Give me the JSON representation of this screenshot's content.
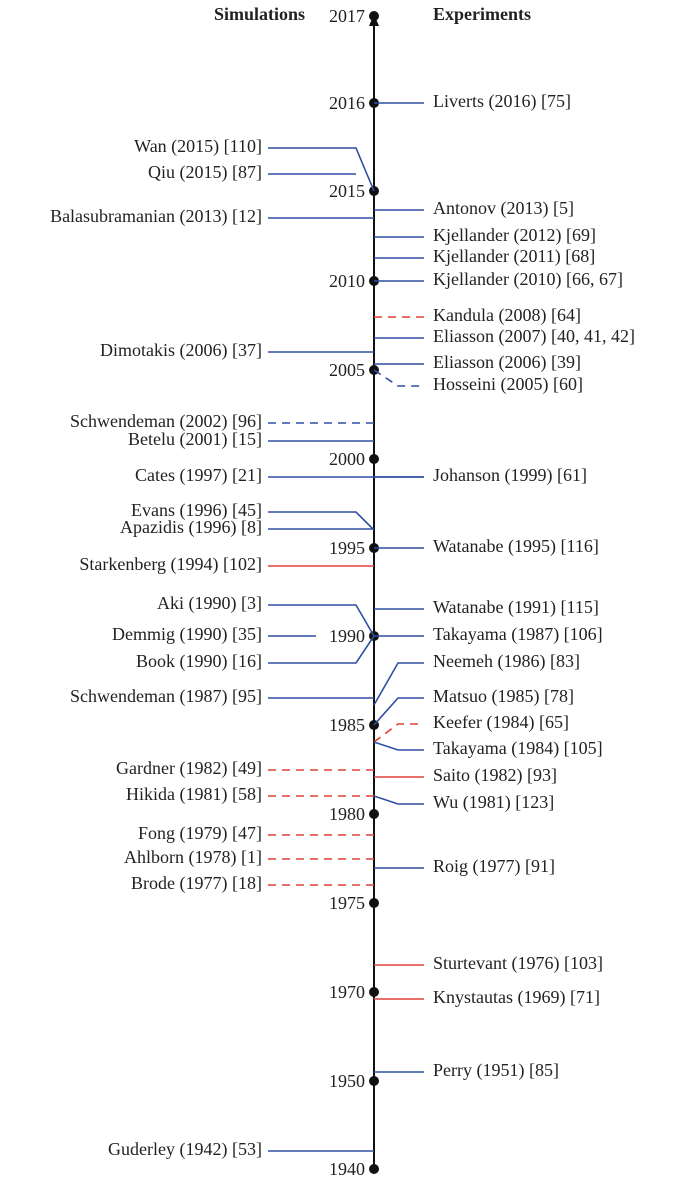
{
  "headers": {
    "left": "Simulations",
    "right": "Experiments"
  },
  "years": [
    "2017",
    "2016",
    "2015",
    "2010",
    "2005",
    "2000",
    "1995",
    "1990",
    "1985",
    "1980",
    "1975",
    "1970",
    "1950",
    "1940"
  ],
  "simulations": [
    "Wan (2015) [110]",
    "Qiu (2015) [87]",
    "Balasubramanian (2013) [12]",
    "Dimotakis (2006) [37]",
    "Schwendeman (2002) [96]",
    "Betelu (2001) [15]",
    "Cates (1997) [21]",
    "Evans (1996) [45]",
    "Apazidis (1996) [8]",
    "Starkenberg (1994) [102]",
    "Aki (1990) [3]",
    "Demmig (1990) [35]",
    "Book (1990) [16]",
    "Schwendeman (1987) [95]",
    "Gardner (1982) [49]",
    "Hikida (1981) [58]",
    "Fong (1979) [47]",
    "Ahlborn (1978) [1]",
    "Brode (1977) [18]",
    "Guderley (1942) [53]"
  ],
  "experiments": [
    "Liverts (2016) [75]",
    "Antonov (2013) [5]",
    "Kjellander (2012) [69]",
    "Kjellander (2011) [68]",
    "Kjellander (2010) [66, 67]",
    "Kandula (2008) [64]",
    "Eliasson (2007) [40, 41, 42]",
    "Eliasson (2006) [39]",
    "Hosseini (2005) [60]",
    "Johanson (1999) [61]",
    "Watanabe (1995) [116]",
    "Watanabe (1991) [115]",
    "Takayama (1987) [106]",
    "Neemeh (1986) [83]",
    "Matsuo (1985) [78]",
    "Keefer (1984) [65]",
    "Takayama (1984) [105]",
    "Saito (1982) [93]",
    "Wu (1981) [123]",
    "Roig (1977) [91]",
    "Sturtevant (1976) [103]",
    "Knystautas (1969) [71]",
    "Perry (1951) [85]"
  ]
}
